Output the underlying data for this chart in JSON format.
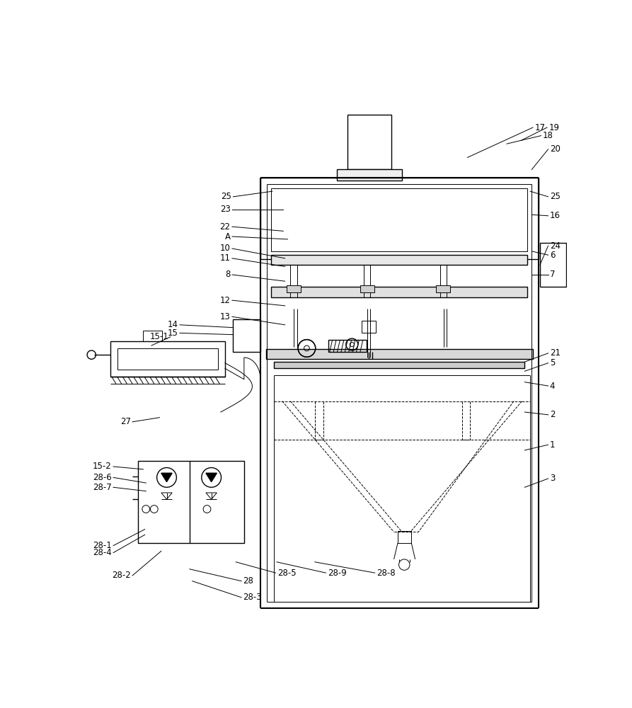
{
  "bg_color": "#ffffff",
  "lc": "#000000",
  "lw": 1.0,
  "tlw": 0.7,
  "figsize": [
    8.93,
    10.0
  ],
  "dpi": 100
}
